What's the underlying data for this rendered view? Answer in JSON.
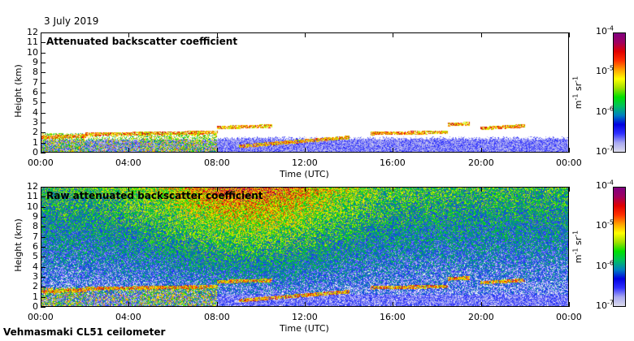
{
  "date_label": "3 July 2019",
  "footer": "Vehmasmaki CL51 ceilometer",
  "colors": {
    "background": "#ffffff",
    "axis": "#000000"
  },
  "chart_data": [
    {
      "type": "heatmap",
      "title": "Attenuated backscatter coefficient",
      "xlabel": "Time (UTC)",
      "ylabel": "Height (km)",
      "xticks": [
        "00:00",
        "04:00",
        "08:00",
        "12:00",
        "16:00",
        "20:00",
        "00:00"
      ],
      "yticks": [
        "0",
        "1",
        "2",
        "3",
        "4",
        "5",
        "6",
        "7",
        "8",
        "9",
        "10",
        "11",
        "12"
      ],
      "xlim_hours": [
        0,
        24
      ],
      "ylim_km": [
        0,
        12
      ],
      "colorbar": {
        "label": "m-1 sr-1",
        "label_main": "m",
        "exp1": "-1",
        "label_sr": " sr",
        "exp2": "-1",
        "scale": "log",
        "range": [
          1e-07,
          0.0001
        ],
        "ticks": [
          {
            "base": "10",
            "exp": "-7"
          },
          {
            "base": "10",
            "exp": "-6"
          },
          {
            "base": "10",
            "exp": "-5"
          },
          {
            "base": "10",
            "exp": "-4"
          }
        ]
      },
      "cloud_layers_km": [
        {
          "start_h": 0,
          "end_h": 2,
          "base_km": 1.5,
          "top_km": 2.0
        },
        {
          "start_h": 2,
          "end_h": 8,
          "base_km": 1.8,
          "top_km": 2.5
        },
        {
          "start_h": 8,
          "end_h": 10.5,
          "base_km": 2.5,
          "top_km": 3.0
        },
        {
          "start_h": 9,
          "end_h": 14,
          "base_km": 0.6,
          "top_km": 1.5
        },
        {
          "start_h": 15,
          "end_h": 18.5,
          "base_km": 1.9,
          "top_km": 2.3
        },
        {
          "start_h": 18.5,
          "end_h": 19.5,
          "base_km": 2.8,
          "top_km": 3.1
        },
        {
          "start_h": 20,
          "end_h": 22,
          "base_km": 2.4,
          "top_km": 3.3
        }
      ]
    },
    {
      "type": "heatmap",
      "title": "Raw attenuated backscatter coefficient",
      "xlabel": "Time (UTC)",
      "ylabel": "Height (km)",
      "xticks": [
        "00:00",
        "04:00",
        "08:00",
        "12:00",
        "16:00",
        "20:00",
        "00:00"
      ],
      "yticks": [
        "0",
        "1",
        "2",
        "3",
        "4",
        "5",
        "6",
        "7",
        "8",
        "9",
        "10",
        "11",
        "12"
      ],
      "xlim_hours": [
        0,
        24
      ],
      "ylim_km": [
        0,
        12
      ],
      "colorbar": {
        "label": "m-1 sr-1",
        "label_main": "m",
        "exp1": "-1",
        "label_sr": " sr",
        "exp2": "-1",
        "scale": "log",
        "range": [
          1e-07,
          0.0001
        ],
        "ticks": [
          {
            "base": "10",
            "exp": "-7"
          },
          {
            "base": "10",
            "exp": "-6"
          },
          {
            "base": "10",
            "exp": "-5"
          },
          {
            "base": "10",
            "exp": "-4"
          }
        ]
      }
    }
  ]
}
